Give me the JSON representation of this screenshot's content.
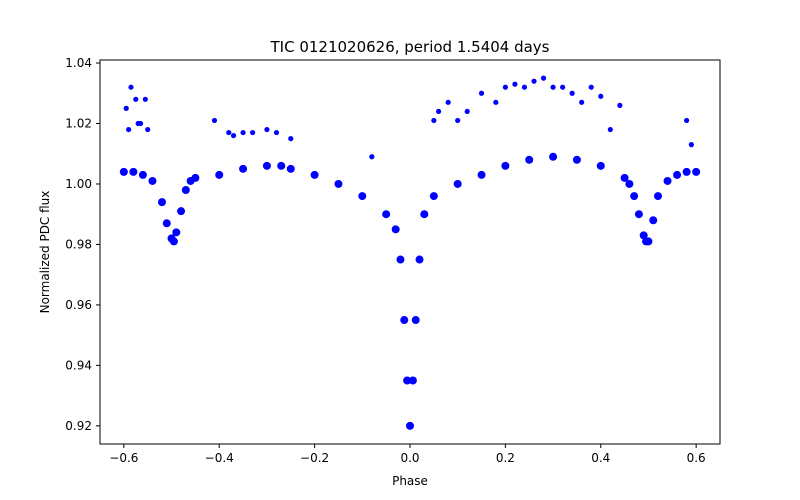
{
  "chart_data": {
    "type": "scatter",
    "title": "TIC 0121020626, period 1.5404 days",
    "xlabel": "Phase",
    "ylabel": "Normalized PDC flux",
    "xlim": [
      -0.65,
      0.65
    ],
    "ylim": [
      0.914,
      1.041
    ],
    "xticks": [
      -0.6,
      -0.4,
      -0.2,
      0.0,
      0.2,
      0.4,
      0.6
    ],
    "xtick_labels": [
      "−0.6",
      "−0.4",
      "−0.2",
      "0.0",
      "0.2",
      "0.4",
      "0.6"
    ],
    "yticks": [
      0.92,
      0.94,
      0.96,
      0.98,
      1.0,
      1.02,
      1.04
    ],
    "ytick_labels": [
      "0.92",
      "0.94",
      "0.96",
      "0.98",
      "1.00",
      "1.02",
      "1.04"
    ],
    "grid": false,
    "marker_color": "#0000ff",
    "series": [
      {
        "x": [
          -0.6,
          -0.58,
          -0.56,
          -0.54,
          -0.52,
          -0.51,
          -0.5,
          -0.495,
          -0.49,
          -0.48,
          -0.47,
          -0.46,
          -0.45,
          -0.4,
          -0.35,
          -0.3,
          -0.27,
          -0.25,
          -0.2,
          -0.15,
          -0.1,
          -0.05,
          -0.03,
          -0.02,
          -0.012,
          -0.006,
          0.0,
          0.006,
          0.012,
          0.02,
          0.03,
          0.05,
          0.1,
          0.15,
          0.2,
          0.25,
          0.3,
          0.35,
          0.4,
          0.45,
          0.46,
          0.47,
          0.48,
          0.49,
          0.495,
          0.5,
          0.51,
          0.52,
          0.54,
          0.56,
          0.58,
          0.6
        ],
        "y": [
          1.004,
          1.004,
          1.003,
          1.001,
          0.994,
          0.987,
          0.982,
          0.981,
          0.984,
          0.991,
          0.998,
          1.001,
          1.002,
          1.003,
          1.005,
          1.006,
          1.006,
          1.005,
          1.003,
          1.0,
          0.996,
          0.99,
          0.985,
          0.975,
          0.955,
          0.935,
          0.92,
          0.935,
          0.955,
          0.975,
          0.99,
          0.996,
          1.0,
          1.003,
          1.006,
          1.008,
          1.009,
          1.008,
          1.006,
          1.002,
          1.0,
          0.996,
          0.99,
          0.983,
          0.981,
          0.981,
          0.988,
          0.996,
          1.001,
          1.003,
          1.004,
          1.004
        ]
      },
      {
        "x": [
          -0.595,
          -0.585,
          -0.575,
          -0.565,
          -0.555,
          -0.55,
          -0.59,
          -0.57,
          -0.41,
          -0.38,
          -0.37,
          -0.35,
          -0.33,
          -0.3,
          -0.28,
          -0.25,
          -0.08,
          0.05,
          0.06,
          0.08,
          0.1,
          0.12,
          0.15,
          0.18,
          0.2,
          0.22,
          0.24,
          0.26,
          0.28,
          0.3,
          0.32,
          0.34,
          0.36,
          0.38,
          0.4,
          0.42,
          0.44,
          0.58,
          0.59
        ],
        "y": [
          1.025,
          1.032,
          1.028,
          1.02,
          1.028,
          1.018,
          1.018,
          1.02,
          1.021,
          1.017,
          1.016,
          1.017,
          1.017,
          1.018,
          1.017,
          1.015,
          1.009,
          1.021,
          1.024,
          1.027,
          1.021,
          1.024,
          1.03,
          1.027,
          1.032,
          1.033,
          1.032,
          1.034,
          1.035,
          1.032,
          1.032,
          1.03,
          1.027,
          1.032,
          1.029,
          1.018,
          1.026,
          1.021,
          1.013
        ]
      }
    ]
  }
}
